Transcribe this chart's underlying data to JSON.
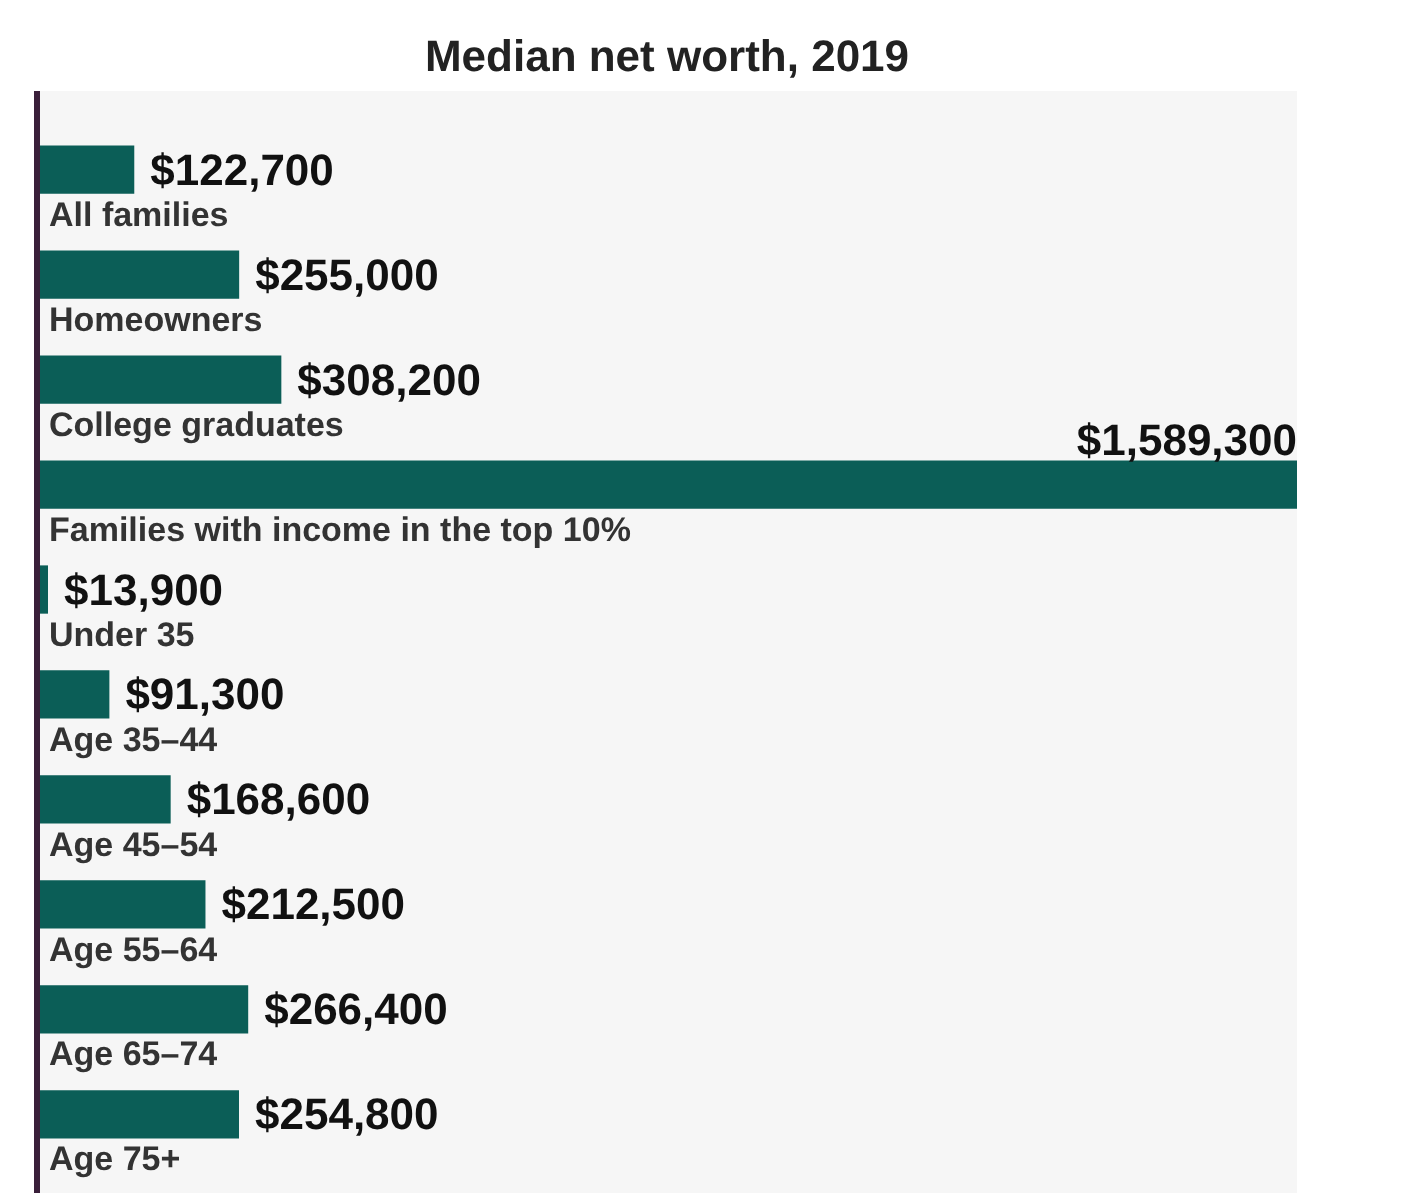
{
  "chart_data": {
    "type": "bar",
    "orientation": "horizontal",
    "title": "Median net worth, 2019",
    "categories": [
      "All families",
      "Homeowners",
      "College graduates",
      "Families with income in the top 10%",
      "Under 35",
      "Age 35–44",
      "Age 45–54",
      "Age 55–64",
      "Age 65–74",
      "Age 75+"
    ],
    "values": [
      122700,
      255000,
      308200,
      1589300,
      13900,
      91300,
      168600,
      212500,
      266400,
      254800
    ],
    "value_labels": [
      "$122,700",
      "$255,000",
      "$308,200",
      "$1,589,300",
      "$13,900",
      "$91,300",
      "$168,600",
      "$212,500",
      "$266,400",
      "$254,800"
    ],
    "color": "#0b5e57"
  }
}
